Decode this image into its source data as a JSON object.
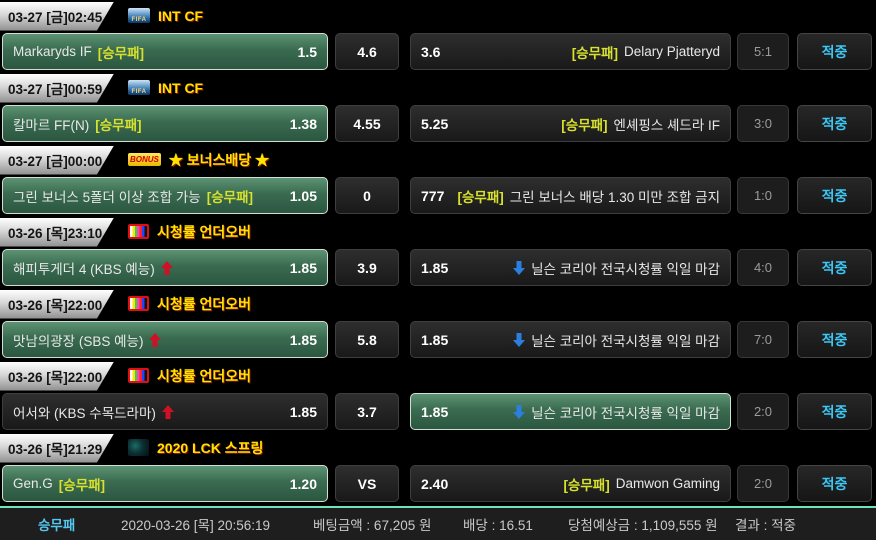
{
  "icons": {
    "fifa_text": "FIFA",
    "bonus_text": "BONUS"
  },
  "colors": {
    "accent_yellow": "#ffe400",
    "tag_yellow_green": "#d8e22e",
    "result_cyan": "#3cc7f5",
    "selected_green": "#3a6b50",
    "footer_separator_mint": "#6fe3c0",
    "arrow_up_red": "#cf1126",
    "arrow_down_blue": "#2a7fe0"
  },
  "groups": [
    {
      "date": "03-27 [금]02:45",
      "league": {
        "icon": "fifa-icon",
        "name": "INT CF"
      },
      "bet": {
        "home": {
          "name": "Markaryds IF",
          "tag": "[승무패]",
          "arrow": null,
          "odds": "1.5",
          "selected": true
        },
        "draw": "4.6",
        "away": {
          "odds": "3.6",
          "tag": "[승무패]",
          "name": "Delary Pjatteryd",
          "arrow": null,
          "selected": false
        },
        "score": "5:1",
        "result": "적중"
      }
    },
    {
      "date": "03-27 [금]00:59",
      "league": {
        "icon": "fifa-icon",
        "name": "INT CF"
      },
      "bet": {
        "home": {
          "name": "칼마르 FF(N)",
          "tag": "[승무패]",
          "arrow": null,
          "odds": "1.38",
          "selected": true
        },
        "draw": "4.55",
        "away": {
          "odds": "5.25",
          "tag": "[승무패]",
          "name": "엔셰핑스 셰드라 IF",
          "arrow": null,
          "selected": false
        },
        "score": "3:0",
        "result": "적중"
      }
    },
    {
      "date": "03-27 [금]00:00",
      "league": {
        "icon": "bonus-icon",
        "name": "★ 보너스배당 ★"
      },
      "bet": {
        "home": {
          "name": "그린 보너스 5폴더 이상 조합 가능",
          "tag": "[승무패]",
          "arrow": null,
          "odds": "1.05",
          "selected": true
        },
        "draw": "0",
        "away": {
          "odds": "777",
          "tag": "[승무패]",
          "name": "그린 보너스 배당 1.30 미만 조합 금지",
          "arrow": null,
          "selected": false
        },
        "score": "1:0",
        "result": "적중"
      }
    },
    {
      "date": "03-26 [목]23:10",
      "league": {
        "icon": "tv-icon",
        "name": "시청률 언더오버"
      },
      "bet": {
        "home": {
          "name": "해피투게더 4 (KBS 예능)",
          "tag": null,
          "arrow": "up",
          "odds": "1.85",
          "selected": true
        },
        "draw": "3.9",
        "away": {
          "odds": "1.85",
          "tag": null,
          "name": "닐슨 코리아 전국시청률 익일 마감",
          "arrow": "down",
          "selected": false
        },
        "score": "4:0",
        "result": "적중"
      }
    },
    {
      "date": "03-26 [목]22:00",
      "league": {
        "icon": "tv-icon",
        "name": "시청률 언더오버"
      },
      "bet": {
        "home": {
          "name": "맛남의광장 (SBS 예능)",
          "tag": null,
          "arrow": "up",
          "odds": "1.85",
          "selected": true
        },
        "draw": "5.8",
        "away": {
          "odds": "1.85",
          "tag": null,
          "name": "닐슨 코리아 전국시청률 익일 마감",
          "arrow": "down",
          "selected": false
        },
        "score": "7:0",
        "result": "적중"
      }
    },
    {
      "date": "03-26 [목]22:00",
      "league": {
        "icon": "tv-icon",
        "name": "시청률 언더오버"
      },
      "bet": {
        "home": {
          "name": "어서와 (KBS 수목드라마)",
          "tag": null,
          "arrow": "up",
          "odds": "1.85",
          "selected": false
        },
        "draw": "3.7",
        "away": {
          "odds": "1.85",
          "tag": null,
          "name": "닐슨 코리아 전국시청률 익일 마감",
          "arrow": "down",
          "selected": true
        },
        "score": "2:0",
        "result": "적중"
      }
    },
    {
      "date": "03-26 [목]21:29",
      "league": {
        "icon": "lck-icon",
        "name": "2020 LCK 스프링"
      },
      "bet": {
        "home": {
          "name": "Gen.G",
          "tag": "[승무패]",
          "arrow": null,
          "odds": "1.20",
          "selected": true
        },
        "draw": "VS",
        "away": {
          "odds": "2.40",
          "tag": "[승무패]",
          "name": "Damwon Gaming",
          "arrow": null,
          "selected": false
        },
        "score": "2:0",
        "result": "적중"
      }
    }
  ],
  "footer": {
    "bet_type": "승무패",
    "datetime": "2020-03-26 [목] 20:56:19",
    "bet_amount": "베팅금액 : 67,205 원",
    "odds": "배당 : 16.51",
    "expected_win": "당첨예상금 : 1,109,555 원",
    "result": "결과 : 적중"
  }
}
